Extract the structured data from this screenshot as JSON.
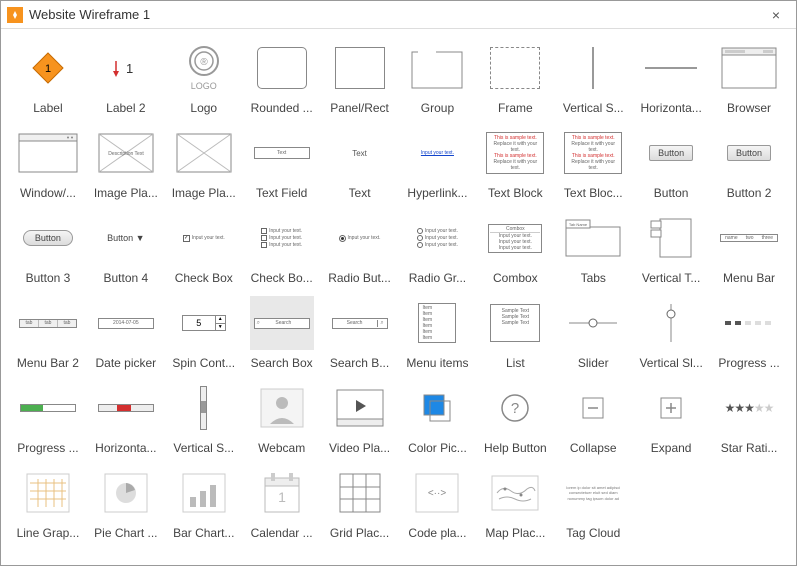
{
  "window": {
    "title": "Website Wireframe 1",
    "close": "×"
  },
  "items": [
    {
      "label": "Label",
      "kind": "diamond",
      "text": "1"
    },
    {
      "label": "Label 2",
      "kind": "arrowtext",
      "text": "1"
    },
    {
      "label": "Logo",
      "kind": "logo",
      "text": "LOGO"
    },
    {
      "label": "Rounded ...",
      "kind": "roundrect"
    },
    {
      "label": "Panel/Rect",
      "kind": "rect"
    },
    {
      "label": "Group",
      "kind": "groupbox"
    },
    {
      "label": "Frame",
      "kind": "dashrect"
    },
    {
      "label": "Vertical S...",
      "kind": "vline"
    },
    {
      "label": "Horizonta...",
      "kind": "hline"
    },
    {
      "label": "Browser",
      "kind": "browser"
    },
    {
      "label": "Window/...",
      "kind": "windowbox"
    },
    {
      "label": "Image Pla...",
      "kind": "imgph1",
      "text": "Description Text"
    },
    {
      "label": "Image Pla...",
      "kind": "imgph2"
    },
    {
      "label": "Text Field",
      "kind": "textfield",
      "text": "Text"
    },
    {
      "label": "Text",
      "kind": "plaintext",
      "text": "Text"
    },
    {
      "label": "Hyperlink...",
      "kind": "hyperlink",
      "text": "Input your text."
    },
    {
      "label": "Text Block",
      "kind": "textblock"
    },
    {
      "label": "Text Bloc...",
      "kind": "textblock"
    },
    {
      "label": "Button",
      "kind": "button3d",
      "text": "Button"
    },
    {
      "label": "Button 2",
      "kind": "button3d",
      "text": "Button"
    },
    {
      "label": "Button 3",
      "kind": "buttonround",
      "text": "Button"
    },
    {
      "label": "Button 4",
      "kind": "buttondrop",
      "text": "Button"
    },
    {
      "label": "Check Box",
      "kind": "checkbox1",
      "text": "Input your text."
    },
    {
      "label": "Check Bo...",
      "kind": "checkbox3",
      "text": "Input your text."
    },
    {
      "label": "Radio But...",
      "kind": "radio1",
      "text": "Input your text."
    },
    {
      "label": "Radio Gr...",
      "kind": "radio3",
      "text": "Input your text."
    },
    {
      "label": "Combox",
      "kind": "combox",
      "text": "Combox"
    },
    {
      "label": "Tabs",
      "kind": "tabs",
      "text": "Tab Name"
    },
    {
      "label": "Vertical T...",
      "kind": "vtabs"
    },
    {
      "label": "Menu Bar",
      "kind": "menubar"
    },
    {
      "label": "Menu Bar 2",
      "kind": "menubar2"
    },
    {
      "label": "Date picker",
      "kind": "datepicker",
      "text": "2014-07-05"
    },
    {
      "label": "Spin Cont...",
      "kind": "spin",
      "text": "5"
    },
    {
      "label": "Search Box",
      "kind": "search1",
      "text": "Search",
      "hovered": true
    },
    {
      "label": "Search B...",
      "kind": "search2",
      "text": "Search"
    },
    {
      "label": "Menu items",
      "kind": "menuitems",
      "text": "Item"
    },
    {
      "label": "List",
      "kind": "list",
      "text": "Sample Text"
    },
    {
      "label": "Slider",
      "kind": "slider"
    },
    {
      "label": "Vertical Sl...",
      "kind": "vslider"
    },
    {
      "label": "Progress ...",
      "kind": "progressdots"
    },
    {
      "label": "Progress ...",
      "kind": "progressbar"
    },
    {
      "label": "Horizonta...",
      "kind": "hscroll"
    },
    {
      "label": "Vertical S...",
      "kind": "vscroll"
    },
    {
      "label": "Webcam",
      "kind": "webcam"
    },
    {
      "label": "Video Pla...",
      "kind": "video"
    },
    {
      "label": "Color Pic...",
      "kind": "colorpick"
    },
    {
      "label": "Help Button",
      "kind": "help"
    },
    {
      "label": "Collapse",
      "kind": "collapse"
    },
    {
      "label": "Expand",
      "kind": "expand"
    },
    {
      "label": "Star Rati...",
      "kind": "stars"
    },
    {
      "label": "Line Grap...",
      "kind": "linegraph"
    },
    {
      "label": "Pie Chart ...",
      "kind": "piechart"
    },
    {
      "label": "Bar Chart...",
      "kind": "barchart"
    },
    {
      "label": "Calendar ...",
      "kind": "calendar",
      "text": "1"
    },
    {
      "label": "Grid Plac...",
      "kind": "gridph"
    },
    {
      "label": "Code pla...",
      "kind": "codeph"
    },
    {
      "label": "Map Plac...",
      "kind": "mapph"
    },
    {
      "label": "Tag Cloud",
      "kind": "tagcloud"
    }
  ],
  "textblock_lines": [
    "This is sample text.",
    "Replace it with your text.",
    "This is sample text.",
    "Replace it with your text."
  ],
  "colors": {
    "accent": "#f7931e",
    "green": "#4caf50",
    "blue": "#1e88e5",
    "star": "#777",
    "red": "#d32f2f"
  }
}
